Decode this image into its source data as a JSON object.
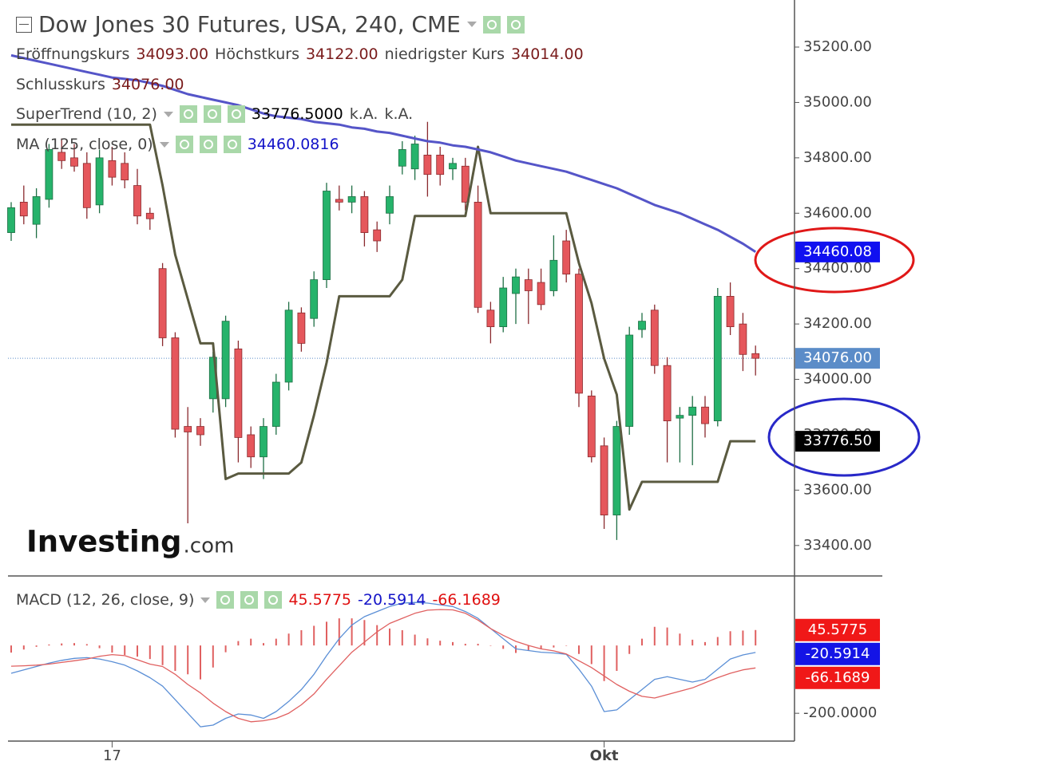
{
  "chart_data": [
    {
      "type": "candlestick",
      "title": "Dow Jones 30 Futures, USA, 240, CME",
      "ohlc_legend": [
        {
          "label": "Eröffnungskurs",
          "value": "34093.00"
        },
        {
          "label": "Höchstkurs",
          "value": "34122.00"
        },
        {
          "label": "niedrigster Kurs",
          "value": "34014.00"
        },
        {
          "label": "Schlusskurs",
          "value": "34076.00"
        }
      ],
      "categories": [
        null,
        null,
        null,
        null,
        null,
        null,
        null,
        null,
        "17",
        null,
        null,
        null,
        null,
        null,
        null,
        null,
        null,
        null,
        null,
        null,
        null,
        null,
        null,
        null,
        null,
        null,
        null,
        null,
        null,
        null,
        null,
        null,
        null,
        null,
        null,
        null,
        null,
        null,
        null,
        null,
        null,
        null,
        null,
        null,
        null,
        null,
        null,
        "Okt",
        null,
        null,
        null,
        null,
        null,
        null,
        null,
        null,
        null,
        null,
        null,
        null
      ],
      "open": [
        34530,
        34640,
        34560,
        34650,
        34820,
        34800,
        34780,
        34630,
        34790,
        34780,
        34700,
        34600,
        34400,
        34150,
        33830,
        33830,
        33930,
        33930,
        34110,
        33800,
        33720,
        33830,
        33990,
        34240,
        34220,
        34360,
        34650,
        34640,
        34660,
        34540,
        34600,
        34770,
        34760,
        34810,
        34810,
        34760,
        34770,
        34640,
        34250,
        34190,
        34310,
        34360,
        34350,
        34320,
        34500,
        34380,
        33940,
        33760,
        33510,
        33830,
        34180,
        34250,
        34050,
        33860,
        33870,
        33900,
        33850,
        34300,
        34200,
        34093
      ],
      "high": [
        34640,
        34700,
        34690,
        34850,
        34870,
        34850,
        34820,
        34830,
        34840,
        34820,
        34760,
        34620,
        34420,
        34170,
        33900,
        33860,
        34100,
        34230,
        34140,
        33830,
        33860,
        34020,
        34280,
        34260,
        34390,
        34710,
        34700,
        34700,
        34680,
        34570,
        34700,
        34860,
        34880,
        34930,
        34840,
        34800,
        34800,
        34700,
        34280,
        34370,
        34400,
        34400,
        34400,
        34520,
        34540,
        34400,
        33960,
        33790,
        33850,
        34190,
        34240,
        34270,
        34080,
        33900,
        33940,
        33940,
        34330,
        34350,
        34240,
        34122
      ],
      "low": [
        34500,
        34560,
        34510,
        34620,
        34760,
        34750,
        34580,
        34600,
        34700,
        34690,
        34560,
        34540,
        34120,
        33790,
        33480,
        33760,
        33880,
        33900,
        33700,
        33680,
        33640,
        33800,
        33960,
        34100,
        34190,
        34330,
        34610,
        34600,
        34480,
        34460,
        34560,
        34740,
        34720,
        34660,
        34700,
        34720,
        34610,
        34240,
        34130,
        34170,
        34200,
        34200,
        34250,
        34300,
        34350,
        33900,
        33700,
        33460,
        33420,
        33800,
        34150,
        34020,
        33700,
        33700,
        33690,
        33790,
        33830,
        34160,
        34030,
        34014
      ],
      "close": [
        34620,
        34590,
        34660,
        34830,
        34790,
        34770,
        34620,
        34800,
        34730,
        34720,
        34590,
        34580,
        34150,
        33820,
        33810,
        33800,
        34080,
        34210,
        33790,
        33720,
        33830,
        33990,
        34250,
        34130,
        34360,
        34680,
        34640,
        34660,
        34530,
        34500,
        34660,
        34830,
        34850,
        34740,
        34740,
        34780,
        34640,
        34260,
        34190,
        34330,
        34370,
        34320,
        34270,
        34430,
        34380,
        33950,
        33720,
        33510,
        33830,
        34160,
        34210,
        34050,
        33850,
        33870,
        33900,
        33840,
        34300,
        34190,
        34090,
        34076
      ],
      "close_badge": "34076.00",
      "close_badge_color": "#5b8cc8",
      "up_color": "#26b36b",
      "down_color": "#e5575c",
      "series": [
        {
          "name": "SuperTrend (10, 2)",
          "color": "#5a5a40",
          "readout": "33776.5000",
          "readout_color": "#000000",
          "readout_extra": [
            "k.A.",
            "k.A."
          ],
          "badge": "33776.50",
          "badge_color": "#000000",
          "values": [
            34920,
            34920,
            34920,
            34920,
            34920,
            34920,
            34920,
            34920,
            34920,
            34920,
            34920,
            34920,
            34700,
            34450,
            34290,
            34130,
            34130,
            33640,
            33660,
            33660,
            33660,
            33660,
            33660,
            33700,
            33870,
            34060,
            34300,
            34300,
            34300,
            34300,
            34300,
            34360,
            34590,
            34590,
            34590,
            34590,
            34590,
            34840,
            34600,
            34600,
            34600,
            34600,
            34600,
            34600,
            34600,
            34420,
            34275,
            34075,
            33945,
            33530,
            33630,
            33630,
            33630,
            33630,
            33630,
            33630,
            33630,
            33776.5,
            33776.5,
            33776.5
          ]
        },
        {
          "name": "MA (125, close, 0)",
          "color": "#5555c8",
          "readout": "34460.0816",
          "readout_color": "#1414c8",
          "badge": "34460.08",
          "badge_color": "#1010f0",
          "values": [
            35170,
            35160,
            35150,
            35140,
            35130,
            35120,
            35110,
            35100,
            35090,
            35085,
            35080,
            35070,
            35060,
            35045,
            35030,
            35020,
            35010,
            35000,
            34990,
            34975,
            34960,
            34950,
            34945,
            34940,
            34930,
            34925,
            34920,
            34910,
            34905,
            34895,
            34890,
            34880,
            34870,
            34860,
            34855,
            34845,
            34840,
            34830,
            34820,
            34805,
            34790,
            34780,
            34770,
            34760,
            34750,
            34735,
            34720,
            34705,
            34690,
            34670,
            34650,
            34630,
            34615,
            34600,
            34580,
            34560,
            34540,
            34515,
            34490,
            34460.0816
          ]
        }
      ],
      "ylim": [
        33290,
        35370
      ],
      "yticks": [
        {
          "value": 33400,
          "label": "33400.00"
        },
        {
          "value": 33600,
          "label": "33600.00"
        },
        {
          "value": 33800,
          "label": "33800.00"
        },
        {
          "value": 34000,
          "label": "34000.00"
        },
        {
          "value": 34200,
          "label": "34200.00"
        },
        {
          "value": 34400,
          "label": "34400.00"
        },
        {
          "value": 34600,
          "label": "34600.00"
        },
        {
          "value": 34800,
          "label": "34800.00"
        },
        {
          "value": 35000,
          "label": "35000.00"
        },
        {
          "value": 35200,
          "label": "35200.00"
        }
      ],
      "grid": false,
      "watermark": "Investing",
      "watermark_suffix": ".com"
    },
    {
      "type": "combo",
      "title": "MACD (12, 26, close, 9)",
      "series": [
        {
          "kind": "bar",
          "color": "#e06060",
          "readout": "45.5775",
          "readout_color": "#e01010",
          "badge": "45.5775",
          "badge_color": "#f01818",
          "values": [
            -21,
            -12,
            -4,
            3,
            6,
            7,
            4,
            -8,
            -21,
            -28,
            -33,
            -40,
            -58,
            -75,
            -85,
            -100,
            -65,
            -20,
            13,
            20,
            7,
            20,
            35,
            45,
            58,
            70,
            80,
            80,
            75,
            60,
            50,
            45,
            32,
            21,
            14,
            10,
            5,
            5,
            0,
            -10,
            -22,
            -15,
            -10,
            -6,
            -1,
            -25,
            -55,
            -105,
            -75,
            -25,
            20,
            55,
            53,
            35,
            17,
            10,
            25,
            42,
            44,
            45.5775
          ]
        },
        {
          "kind": "line",
          "color": "#5b8fd6",
          "readout": "-20.5914",
          "readout_color": "#1414c8",
          "badge": "-20.5914",
          "badge_color": "#1414e6",
          "values": [
            -82,
            -72,
            -62,
            -52,
            -44,
            -38,
            -36,
            -40,
            -48,
            -58,
            -75,
            -95,
            -120,
            -160,
            -200,
            -240,
            -235,
            -215,
            -202,
            -205,
            -215,
            -195,
            -165,
            -130,
            -85,
            -30,
            20,
            60,
            85,
            100,
            115,
            125,
            127,
            125,
            120,
            115,
            100,
            80,
            50,
            20,
            -10,
            -15,
            -20,
            -22,
            -26,
            -70,
            -120,
            -195,
            -190,
            -160,
            -130,
            -100,
            -92,
            -100,
            -108,
            -100,
            -70,
            -40,
            -28,
            -20.5914
          ]
        },
        {
          "kind": "line",
          "color": "#e06060",
          "readout": "-66.1689",
          "readout_color": "#e01010",
          "badge": "-66.1689",
          "badge_color": "#f01818",
          "values": [
            -61,
            -60,
            -58,
            -55,
            -50,
            -45,
            -40,
            -32,
            -27,
            -30,
            -42,
            -55,
            -62,
            -85,
            -115,
            -140,
            -170,
            -195,
            -215,
            -225,
            -222,
            -215,
            -200,
            -175,
            -143,
            -100,
            -60,
            -20,
            10,
            40,
            65,
            80,
            95,
            104,
            106,
            105,
            95,
            75,
            50,
            30,
            12,
            0,
            -10,
            -16,
            -25,
            -45,
            -65,
            -90,
            -115,
            -135,
            -150,
            -155,
            -145,
            -135,
            -125,
            -110,
            -95,
            -82,
            -72,
            -66.1689
          ]
        }
      ],
      "ylim": [
        -282,
        205
      ],
      "yticks": [
        {
          "value": -200,
          "label": "-200.0000"
        }
      ]
    }
  ]
}
